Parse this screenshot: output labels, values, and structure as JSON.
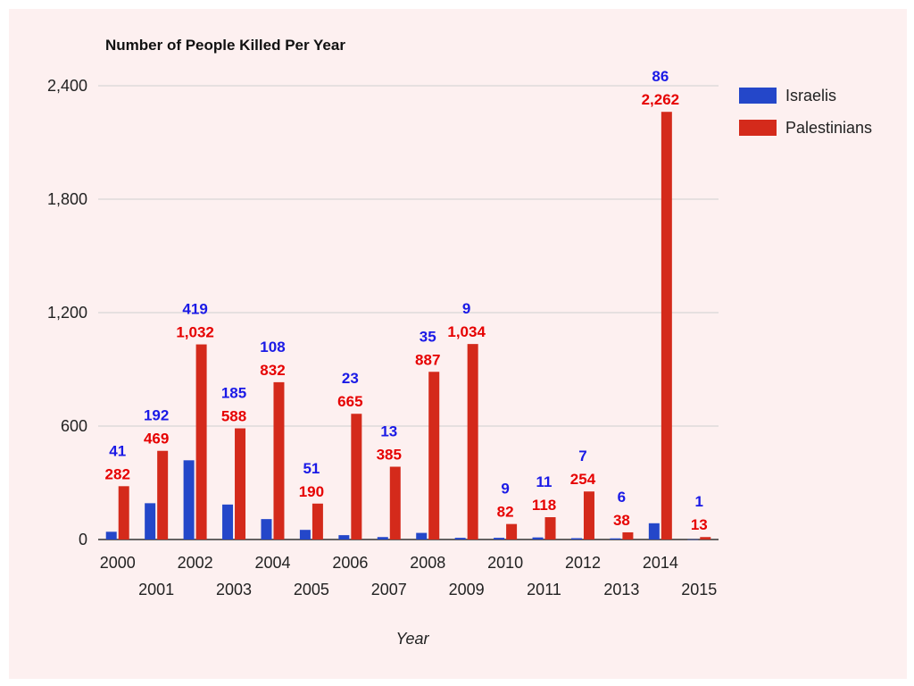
{
  "chart_data": {
    "type": "bar",
    "title": "Number of People Killed Per Year",
    "xlabel": "Year",
    "ylabel": "",
    "ylim": [
      0,
      2400
    ],
    "yticks": [
      "0",
      "600",
      "1,200",
      "1,800",
      "2,400"
    ],
    "grid": true,
    "legend_position": "right",
    "categories": [
      "2000",
      "2001",
      "2002",
      "2003",
      "2004",
      "2005",
      "2006",
      "2007",
      "2008",
      "2009",
      "2010",
      "2011",
      "2012",
      "2013",
      "2014",
      "2015"
    ],
    "series": [
      {
        "name": "Israelis",
        "color": "#2447c9",
        "values": [
          41,
          192,
          419,
          185,
          108,
          51,
          23,
          13,
          35,
          9,
          9,
          11,
          7,
          6,
          86,
          1
        ],
        "labels": [
          "41",
          "192",
          "419",
          "185",
          "108",
          "51",
          "23",
          "13",
          "35",
          "9",
          "9",
          "11",
          "7",
          "6",
          "86",
          "1"
        ]
      },
      {
        "name": "Palestinians",
        "color": "#d42a1b",
        "values": [
          282,
          469,
          1032,
          588,
          832,
          190,
          665,
          385,
          887,
          1034,
          82,
          118,
          254,
          38,
          2262,
          13
        ],
        "labels": [
          "282",
          "469",
          "1,032",
          "588",
          "832",
          "190",
          "665",
          "385",
          "887",
          "1,034",
          "82",
          "118",
          "254",
          "38",
          "2,262",
          "13"
        ]
      }
    ],
    "label_colors": {
      "israelis": "#1a1ae6",
      "palestinians": "#e60000"
    }
  }
}
